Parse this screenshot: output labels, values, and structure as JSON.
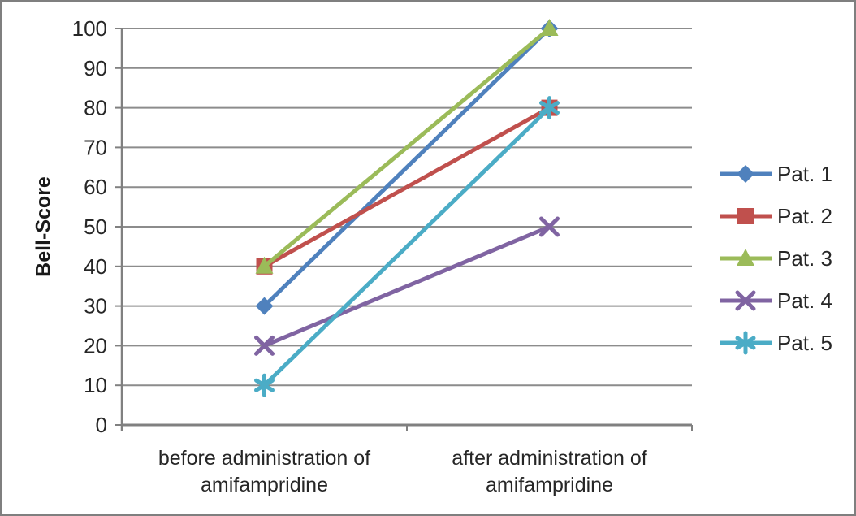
{
  "chart_data": {
    "type": "line",
    "title": "",
    "xlabel": "",
    "ylabel": "Bell-Score",
    "ylim": [
      0,
      100
    ],
    "yticks": [
      0,
      10,
      20,
      30,
      40,
      50,
      60,
      70,
      80,
      90,
      100
    ],
    "grid": true,
    "legend_position": "right",
    "categories": [
      "before administration of\namifampridine",
      "after administration of\namifampridine"
    ],
    "series": [
      {
        "name": "Pat. 1",
        "values": [
          30,
          100
        ],
        "color": "#4F81BD",
        "marker": "diamond"
      },
      {
        "name": "Pat. 2",
        "values": [
          40,
          80
        ],
        "color": "#C0504D",
        "marker": "square"
      },
      {
        "name": "Pat. 3",
        "values": [
          40,
          100
        ],
        "color": "#9BBB59",
        "marker": "triangle"
      },
      {
        "name": "Pat. 4",
        "values": [
          20,
          50
        ],
        "color": "#8064A2",
        "marker": "x"
      },
      {
        "name": "Pat. 5",
        "values": [
          10,
          80
        ],
        "color": "#4BACC6",
        "marker": "asterisk"
      }
    ],
    "colors": {
      "gridline": "#8C8C8C",
      "axis": "#808080",
      "text": "#262626"
    }
  }
}
